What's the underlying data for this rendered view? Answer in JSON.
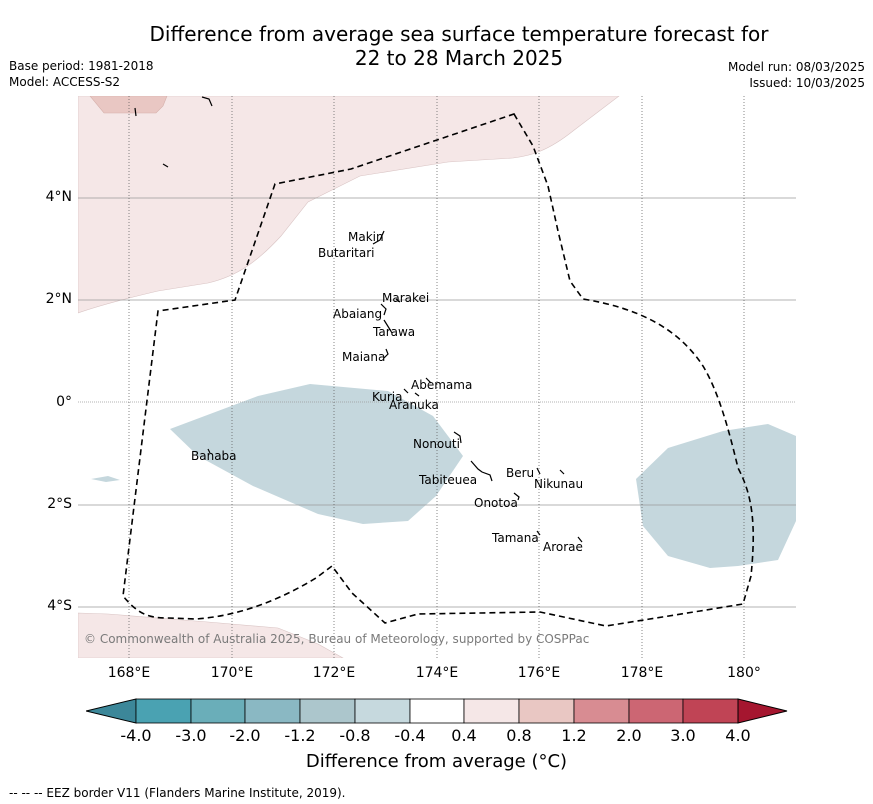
{
  "header": {
    "title_line1": "Difference from average sea surface temperature forecast for",
    "title_line2": "22 to 28 March 2025",
    "base_period": "Base period: 1981-2018",
    "model": "Model: ACCESS-S2",
    "model_run": "Model run: 08/03/2025",
    "issued": "Issued: 10/03/2025"
  },
  "map": {
    "lat_labels": [
      "4°N",
      "2°N",
      "0°",
      "2°S",
      "4°S"
    ],
    "lon_labels": [
      "168°E",
      "170°E",
      "172°E",
      "174°E",
      "176°E",
      "178°E",
      "180°"
    ],
    "places": [
      "Makin",
      "Butaritari",
      "Marakei",
      "Abaiang",
      "Tarawa",
      "Maiana",
      "Abemama",
      "Kuria",
      "Aranuka",
      "Nonouti",
      "Banaba",
      "Beru",
      "Nikunau",
      "Tabiteuea",
      "Onotoa",
      "Tamana",
      "Arorae"
    ],
    "copyright": "© Commonwealth of Australia 2025, Bureau of Meteorology, supported by COSPPac"
  },
  "legend": {
    "ticks": [
      "-4.0",
      "-3.0",
      "-2.0",
      "-1.2",
      "-0.8",
      "-0.4",
      "0.4",
      "0.8",
      "1.2",
      "2.0",
      "3.0",
      "4.0"
    ],
    "colors": [
      "#3c8799",
      "#4aa2b2",
      "#6aaeb9",
      "#8ab8c3",
      "#acc6cc",
      "#c6d9de",
      "#ffffff",
      "#f5e7e7",
      "#e9c7c3",
      "#d88c92",
      "#cc6673",
      "#c04455",
      "#a5162f"
    ],
    "label": "Difference from average (°C)"
  },
  "footer": "-- -- -- EEZ border V11 (Flanders Marine Institute, 2019)."
}
